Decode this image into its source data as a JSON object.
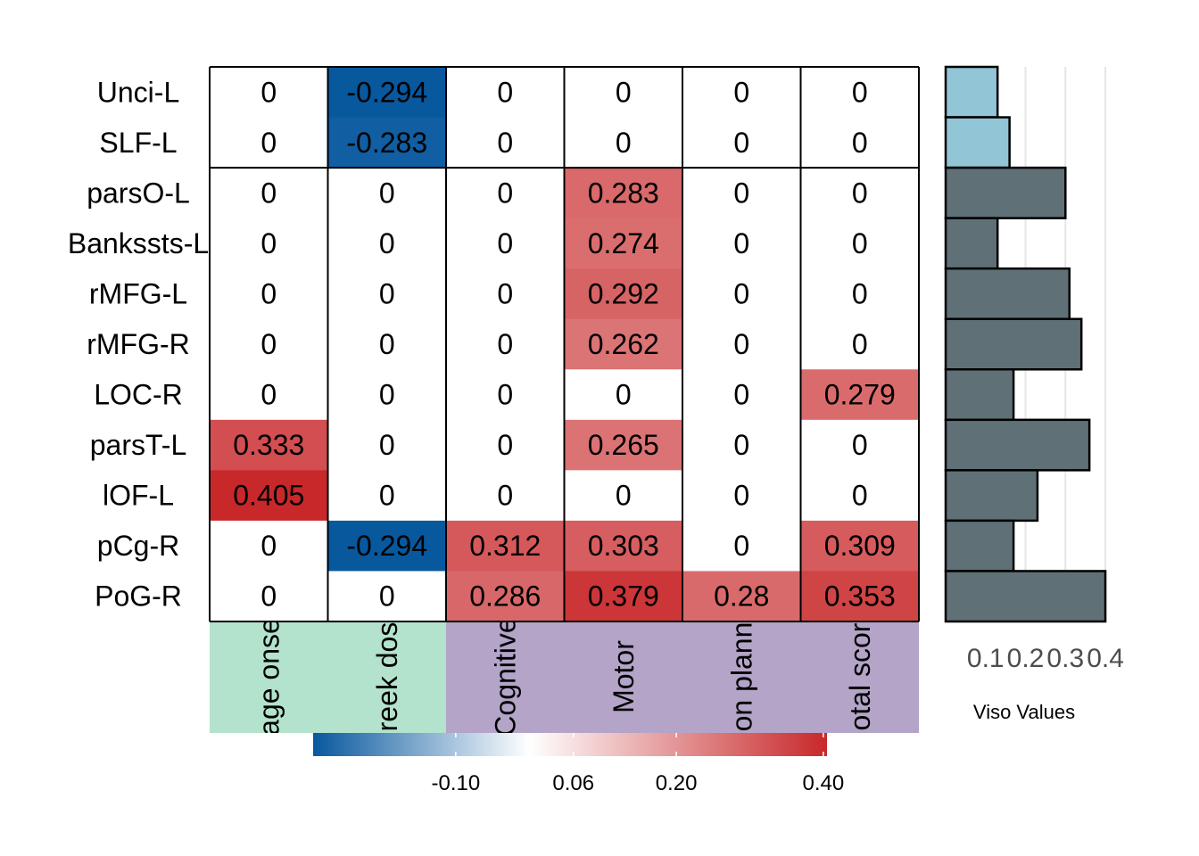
{
  "chart_data": {
    "type": "heatmap",
    "rows": [
      "Unci-L",
      "SLF-L",
      "parsO-L",
      "Bankssts-L",
      "rMFG-L",
      "rMFG-R",
      "LOC-R",
      "parsT-L",
      "lOF-L",
      "pCg-R",
      "PoG-R"
    ],
    "row_label_display": [
      "Unci-L",
      "SLF-L",
      "parsO-L",
      "Bankssts-L",
      "rMFG-L",
      "rMFG-R",
      "LOC-R",
      "parsT-L",
      "lOF-L",
      "pCg-R",
      "PoG-R"
    ],
    "columns": [
      "Age onset",
      "Week dose",
      "Cognitive",
      "Motor",
      "Action planning",
      "Total score"
    ],
    "column_label_display": [
      "age onse",
      "reek dos",
      "Cognitive",
      "Motor",
      "on plann",
      "otal scor"
    ],
    "column_groups": [
      {
        "span": [
          0,
          1
        ],
        "color": "#b3e2cd"
      },
      {
        "span": [
          2,
          5
        ],
        "color": "#b3a4c8"
      }
    ],
    "row_group_break_after": 1,
    "values": [
      [
        0,
        -0.294,
        0,
        0,
        0,
        0
      ],
      [
        0,
        -0.283,
        0,
        0,
        0,
        0
      ],
      [
        0,
        0,
        0,
        0.283,
        0,
        0
      ],
      [
        0,
        0,
        0,
        0.274,
        0,
        0
      ],
      [
        0,
        0,
        0,
        0.292,
        0,
        0
      ],
      [
        0,
        0,
        0,
        0.262,
        0,
        0
      ],
      [
        0,
        0,
        0,
        0,
        0,
        0.279
      ],
      [
        0.333,
        0,
        0,
        0.265,
        0,
        0
      ],
      [
        0.405,
        0,
        0,
        0,
        0,
        0
      ],
      [
        0,
        -0.294,
        0.312,
        0.303,
        0,
        0.309
      ],
      [
        0,
        0,
        0.286,
        0.379,
        0.28,
        0.353
      ]
    ],
    "value_labels": [
      [
        "0",
        "-0.294",
        "0",
        "0",
        "0",
        "0"
      ],
      [
        "0",
        "-0.283",
        "0",
        "0",
        "0",
        "0"
      ],
      [
        "0",
        "0",
        "0",
        "0.283",
        "0",
        "0"
      ],
      [
        "0",
        "0",
        "0",
        "0.274",
        "0",
        "0"
      ],
      [
        "0",
        "0",
        "0",
        "0.292",
        "0",
        "0"
      ],
      [
        "0",
        "0",
        "0",
        "0.262",
        "0",
        "0"
      ],
      [
        "0",
        "0",
        "0",
        "0",
        "0",
        "0.279"
      ],
      [
        "0.333",
        "0",
        "0",
        "0.265",
        "0",
        "0"
      ],
      [
        "0.405",
        "0",
        "0",
        "0",
        "0",
        "0"
      ],
      [
        "0",
        "-0.294",
        "0.312",
        "0.303",
        "0",
        "0.309"
      ],
      [
        "0",
        "0",
        "0.286",
        "0.379",
        "0.28",
        "0.353"
      ]
    ],
    "colorscale": {
      "min": -0.294,
      "max": 0.405,
      "low_color": "#08589e",
      "mid_color": "#ffffff",
      "high_color": "#c8282a",
      "ticks": [
        -0.1,
        0.06,
        0.2,
        0.4
      ],
      "tick_labels": [
        "-0.10",
        "0.06",
        "0.20",
        "0.40"
      ]
    },
    "side_bars": {
      "title": "Viso Values",
      "values": [
        0.13,
        0.16,
        0.3,
        0.13,
        0.31,
        0.34,
        0.17,
        0.36,
        0.23,
        0.17,
        0.4
      ],
      "group_colors": [
        "#92c5d6",
        "#92c5d6",
        "#5f7176",
        "#5f7176",
        "#5f7176",
        "#5f7176",
        "#5f7176",
        "#5f7176",
        "#5f7176",
        "#5f7176",
        "#5f7176"
      ],
      "xlim": [
        0,
        0.42
      ],
      "ticks": [
        0.1,
        0.2,
        0.3,
        0.4
      ],
      "tick_labels": [
        "0.1",
        "0.2",
        "0.3",
        "0.4"
      ]
    }
  }
}
